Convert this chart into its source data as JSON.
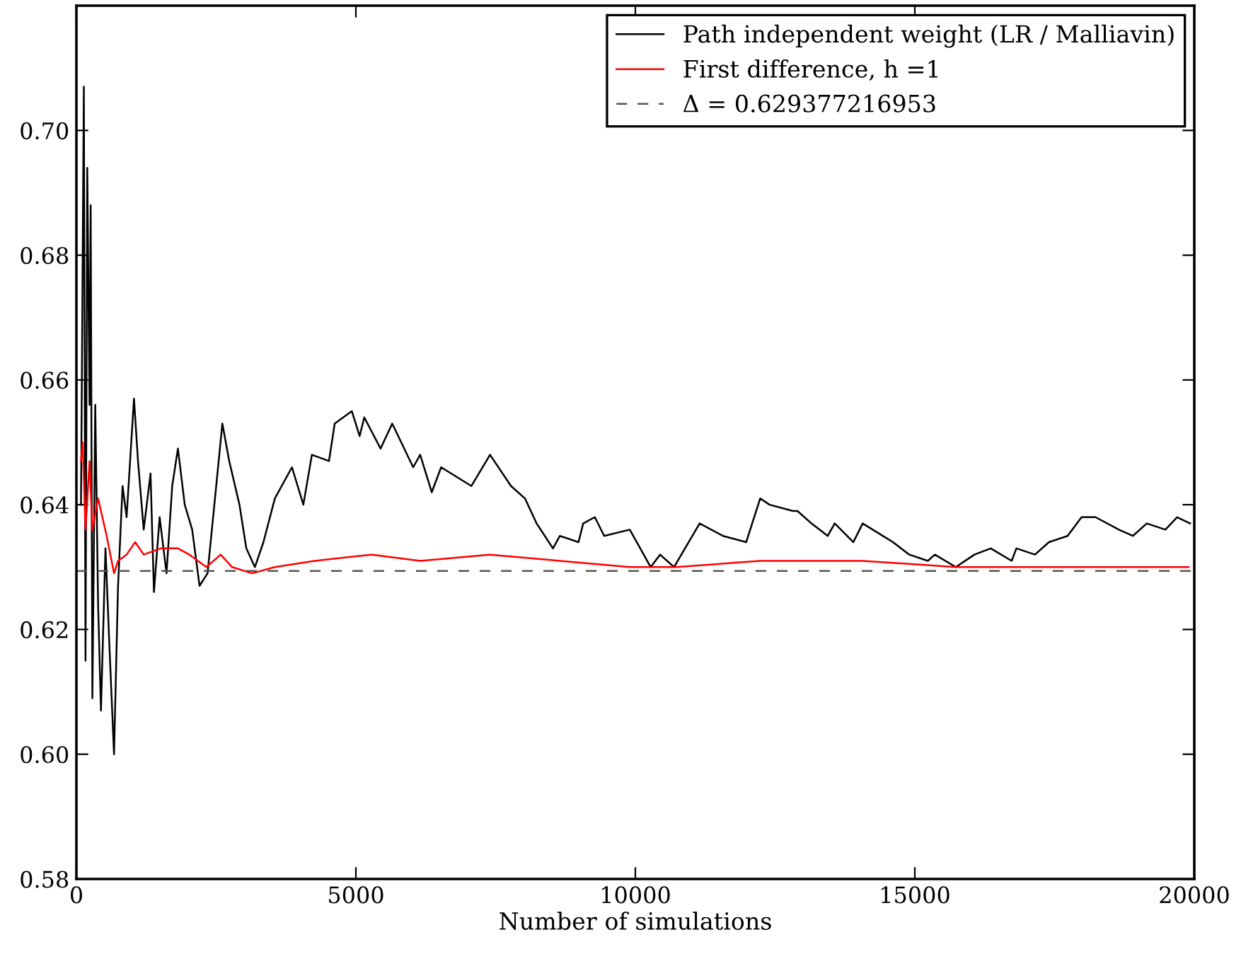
{
  "chart_data": {
    "type": "line",
    "xlabel": "Number of simulations",
    "xlim": [
      0,
      20000
    ],
    "xticks": [
      0,
      5000,
      10000,
      15000,
      20000
    ],
    "ylim": [
      0.58,
      0.72
    ],
    "yticks": [
      {
        "value": 0.58,
        "label": "0.58"
      },
      {
        "value": 0.6,
        "label": "0.60"
      },
      {
        "value": 0.62,
        "label": "0.62"
      },
      {
        "value": 0.64,
        "label": "0.64"
      },
      {
        "value": 0.66,
        "label": "0.66"
      },
      {
        "value": 0.68,
        "label": "0.68"
      },
      {
        "value": 0.7,
        "label": "0.70"
      }
    ],
    "grid": false,
    "legend": "top right",
    "series": [
      {
        "name": "Path independent weight (LR / Malliavin)",
        "color": "#000000",
        "line_style": "solid",
        "x": [
          82,
          133,
          163,
          194,
          235,
          255,
          286,
          337,
          388,
          439,
          520,
          592,
          673,
          745,
          826,
          898,
          1030,
          1102,
          1204,
          1326,
          1387,
          1489,
          1612,
          1714,
          1816,
          1938,
          2071,
          2203,
          2346,
          2479,
          2611,
          2734,
          2917,
          3040,
          3193,
          3346,
          3550,
          3856,
          4060,
          4213,
          4519,
          4621,
          4927,
          5067,
          5150,
          5442,
          5650,
          6025,
          6150,
          6358,
          6525,
          7067,
          7400,
          7775,
          8025,
          8233,
          8525,
          8650,
          8983,
          9067,
          9275,
          9442,
          9900,
          10275,
          10442,
          10692,
          11150,
          11567,
          11983,
          12233,
          12400,
          12817,
          12900,
          13150,
          13442,
          13567,
          13900,
          14067,
          14608,
          14900,
          15233,
          15358,
          15733,
          16067,
          16358,
          16733,
          16817,
          17150,
          17400,
          17733,
          17983,
          18233,
          18650,
          18900,
          19150,
          19483,
          19692,
          19925
        ],
        "values": [
          0.64,
          0.707,
          0.615,
          0.694,
          0.656,
          0.688,
          0.609,
          0.656,
          0.624,
          0.607,
          0.633,
          0.617,
          0.6,
          0.627,
          0.643,
          0.638,
          0.657,
          0.647,
          0.636,
          0.645,
          0.626,
          0.638,
          0.629,
          0.643,
          0.649,
          0.64,
          0.636,
          0.627,
          0.629,
          0.641,
          0.653,
          0.647,
          0.64,
          0.633,
          0.63,
          0.634,
          0.641,
          0.646,
          0.64,
          0.648,
          0.647,
          0.653,
          0.655,
          0.651,
          0.654,
          0.649,
          0.653,
          0.646,
          0.648,
          0.642,
          0.646,
          0.643,
          0.648,
          0.643,
          0.641,
          0.637,
          0.633,
          0.635,
          0.634,
          0.637,
          0.638,
          0.635,
          0.636,
          0.63,
          0.632,
          0.63,
          0.637,
          0.635,
          0.634,
          0.641,
          0.64,
          0.639,
          0.639,
          0.637,
          0.635,
          0.637,
          0.634,
          0.637,
          0.634,
          0.632,
          0.631,
          0.632,
          0.63,
          0.632,
          0.633,
          0.631,
          0.633,
          0.632,
          0.634,
          0.635,
          0.638,
          0.638,
          0.636,
          0.635,
          0.637,
          0.636,
          0.638,
          0.637
        ]
      },
      {
        "name": "First difference, h =1",
        "color": "#ff0000",
        "line_style": "solid",
        "x": [
          82,
          112,
          163,
          235,
          286,
          388,
          541,
          673,
          745,
          898,
          1051,
          1204,
          1510,
          1816,
          2020,
          2326,
          2581,
          2785,
          3142,
          3550,
          4264,
          5284,
          6151,
          7400,
          8650,
          9900,
          10733,
          12233,
          12817,
          14067,
          15733,
          16733,
          17983,
          19900
        ],
        "values": [
          0.647,
          0.65,
          0.636,
          0.647,
          0.636,
          0.641,
          0.635,
          0.629,
          0.631,
          0.632,
          0.634,
          0.632,
          0.633,
          0.633,
          0.632,
          0.63,
          0.632,
          0.63,
          0.629,
          0.63,
          0.631,
          0.632,
          0.631,
          0.632,
          0.631,
          0.63,
          0.63,
          0.631,
          0.631,
          0.631,
          0.63,
          0.63,
          0.63,
          0.63
        ]
      },
      {
        "name": "Δ = 0.629377216953",
        "color": "#555555",
        "line_style": "dashed",
        "x": [
          0,
          20000
        ],
        "values": [
          0.629377216953,
          0.629377216953
        ]
      }
    ]
  }
}
